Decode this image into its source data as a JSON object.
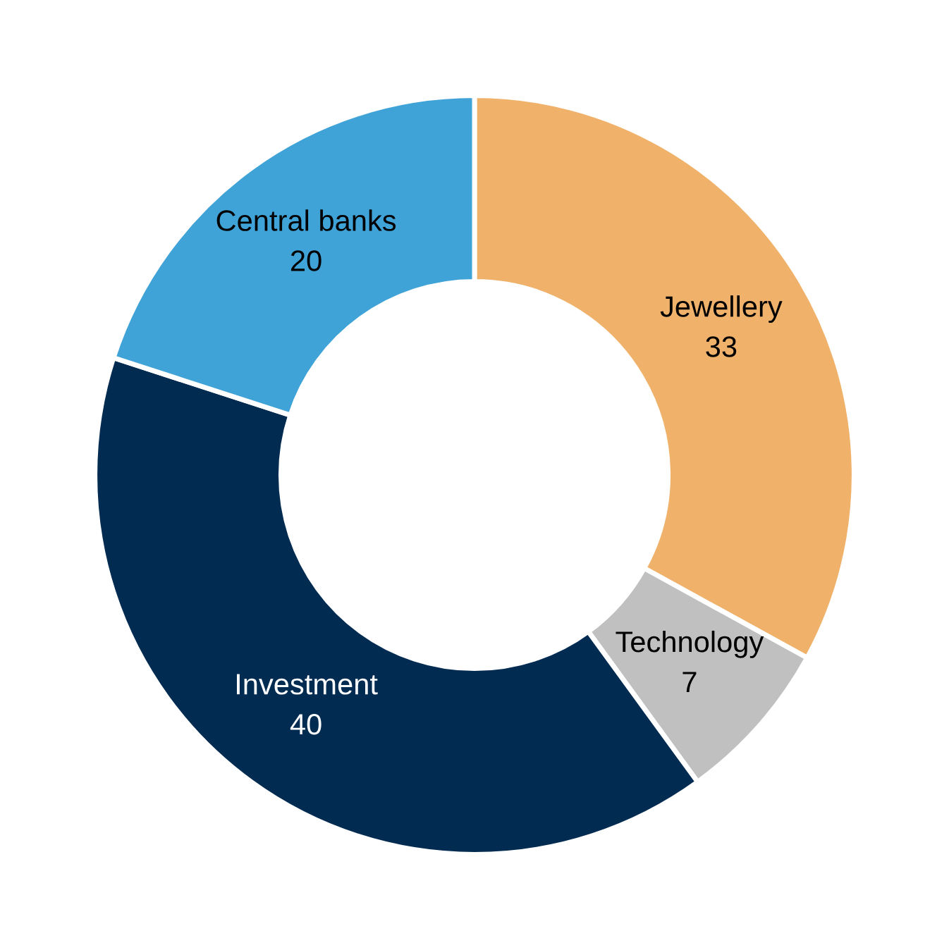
{
  "chart_data": {
    "type": "donut",
    "categories": [
      "Jewellery",
      "Technology",
      "Investment",
      "Central banks"
    ],
    "values": [
      33,
      7,
      40,
      20
    ],
    "colors": [
      "#f0b26b",
      "#c0c0c0",
      "#022b52",
      "#3fa3d8"
    ],
    "data_labels": true,
    "legend": false
  }
}
